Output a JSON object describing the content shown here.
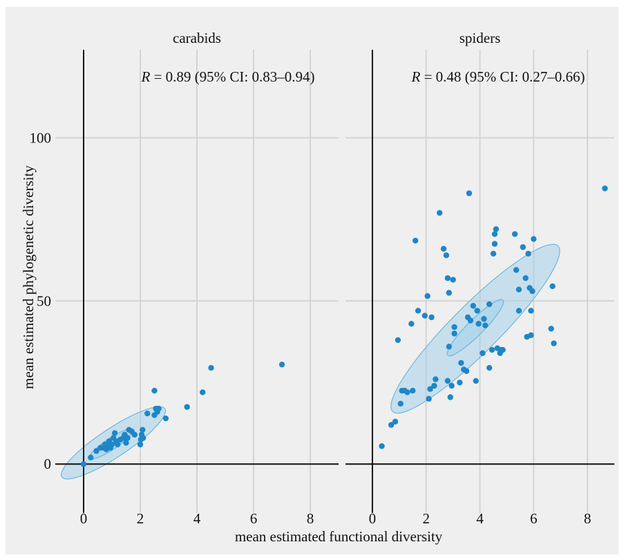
{
  "chart_data": {
    "type": "scatter",
    "xlabel": "mean estimated functional diversity",
    "ylabel": "mean estimated phylogenetic diversity",
    "xlim": [
      -1,
      9
    ],
    "ylim": [
      -15,
      127
    ],
    "x_ticks": [
      0,
      2,
      4,
      6,
      8
    ],
    "y_ticks": [
      0,
      50,
      100
    ],
    "grid": true,
    "colors": {
      "background": "#efefef",
      "grid": "#d4d4d4",
      "zero_line": "#111111",
      "point": "#1f86c7",
      "ellipse_fill": "#9fd0ea",
      "ellipse_stroke": "#6fb6dc"
    },
    "panels": [
      {
        "title": "carabids",
        "annotation": {
          "R_symbol": "R",
          "text": " = 0.89 (95% CI: 0.83–0.94)"
        },
        "points": [
          [
            0,
            0
          ],
          [
            0.25,
            2
          ],
          [
            0.45,
            4
          ],
          [
            0.6,
            5
          ],
          [
            0.7,
            5
          ],
          [
            0.75,
            6
          ],
          [
            0.8,
            4.5
          ],
          [
            0.85,
            5.5
          ],
          [
            0.9,
            7
          ],
          [
            0.95,
            5
          ],
          [
            1.0,
            6
          ],
          [
            1.05,
            8
          ],
          [
            1.1,
            9.5
          ],
          [
            1.15,
            7
          ],
          [
            1.2,
            6
          ],
          [
            1.3,
            7.5
          ],
          [
            1.4,
            8
          ],
          [
            1.45,
            9
          ],
          [
            1.5,
            6.5
          ],
          [
            1.55,
            8
          ],
          [
            1.6,
            10.5
          ],
          [
            1.7,
            10
          ],
          [
            1.8,
            9
          ],
          [
            2.0,
            6
          ],
          [
            2.02,
            7.5
          ],
          [
            2.05,
            9
          ],
          [
            2.08,
            10.5
          ],
          [
            2.1,
            8
          ],
          [
            2.25,
            15.5
          ],
          [
            2.5,
            15
          ],
          [
            2.55,
            17
          ],
          [
            2.6,
            16
          ],
          [
            2.65,
            17
          ],
          [
            2.5,
            22.5
          ],
          [
            2.9,
            14
          ],
          [
            3.65,
            17.5
          ],
          [
            4.2,
            22
          ],
          [
            4.5,
            29.5
          ],
          [
            7.0,
            30.5
          ]
        ],
        "ellipses": [
          {
            "cx": 1.05,
            "cy": 6.5,
            "rx": 2.18,
            "ry": 4.4,
            "angle": 33.5
          },
          {
            "cx": 0.98,
            "cy": 6.2,
            "rx": 0.92,
            "ry": 1.75,
            "angle": 33.5
          }
        ]
      },
      {
        "title": "spiders",
        "annotation": {
          "R_symbol": "R",
          "text": " = 0.48 (95% CI: 0.27–0.66)"
        },
        "points": [
          [
            0.35,
            5.5
          ],
          [
            0.7,
            12
          ],
          [
            0.85,
            13
          ],
          [
            0.95,
            38
          ],
          [
            1.05,
            18.5
          ],
          [
            1.1,
            22.5
          ],
          [
            1.2,
            22.5
          ],
          [
            1.3,
            22
          ],
          [
            1.45,
            43
          ],
          [
            1.5,
            22.5
          ],
          [
            1.6,
            68.5
          ],
          [
            1.7,
            47
          ],
          [
            1.95,
            45.5
          ],
          [
            2.05,
            51.5
          ],
          [
            2.1,
            20
          ],
          [
            2.15,
            23
          ],
          [
            2.2,
            45
          ],
          [
            2.3,
            24
          ],
          [
            2.35,
            26
          ],
          [
            2.5,
            77
          ],
          [
            2.65,
            66
          ],
          [
            2.75,
            64
          ],
          [
            2.8,
            25.5
          ],
          [
            2.8,
            57
          ],
          [
            2.85,
            52.5
          ],
          [
            2.85,
            36
          ],
          [
            2.9,
            20.5
          ],
          [
            2.95,
            24
          ],
          [
            3.0,
            56.5
          ],
          [
            3.05,
            42
          ],
          [
            3.05,
            40
          ],
          [
            3.25,
            25
          ],
          [
            3.3,
            31
          ],
          [
            3.4,
            29
          ],
          [
            3.5,
            28.5
          ],
          [
            3.6,
            83
          ],
          [
            3.55,
            45
          ],
          [
            3.65,
            44
          ],
          [
            3.75,
            48.5
          ],
          [
            3.85,
            25.5
          ],
          [
            3.9,
            47
          ],
          [
            3.95,
            43
          ],
          [
            4.1,
            34
          ],
          [
            4.15,
            44.5
          ],
          [
            4.2,
            42.5
          ],
          [
            4.35,
            29.5
          ],
          [
            4.35,
            49
          ],
          [
            4.45,
            35
          ],
          [
            4.5,
            64.5
          ],
          [
            4.55,
            70.5
          ],
          [
            4.55,
            67.5
          ],
          [
            4.6,
            72
          ],
          [
            4.65,
            35.5
          ],
          [
            4.75,
            34
          ],
          [
            4.8,
            35
          ],
          [
            4.85,
            35
          ],
          [
            5.3,
            70.5
          ],
          [
            5.35,
            59.5
          ],
          [
            5.45,
            53.5
          ],
          [
            5.45,
            47
          ],
          [
            5.6,
            66.5
          ],
          [
            5.7,
            57
          ],
          [
            5.75,
            39
          ],
          [
            5.8,
            64.5
          ],
          [
            5.85,
            54
          ],
          [
            5.9,
            47
          ],
          [
            5.9,
            39.5
          ],
          [
            5.95,
            53
          ],
          [
            6.0,
            69
          ],
          [
            6.65,
            41.5
          ],
          [
            6.7,
            54.5
          ],
          [
            6.75,
            37
          ],
          [
            8.65,
            84.5
          ]
        ],
        "ellipses": [
          {
            "cx": 3.83,
            "cy": 41.5,
            "rx": 4.35,
            "ry": 7.3,
            "angle": 45
          },
          {
            "cx": 3.83,
            "cy": 41.8,
            "rx": 1.45,
            "ry": 2.42,
            "angle": 45
          }
        ]
      }
    ]
  }
}
